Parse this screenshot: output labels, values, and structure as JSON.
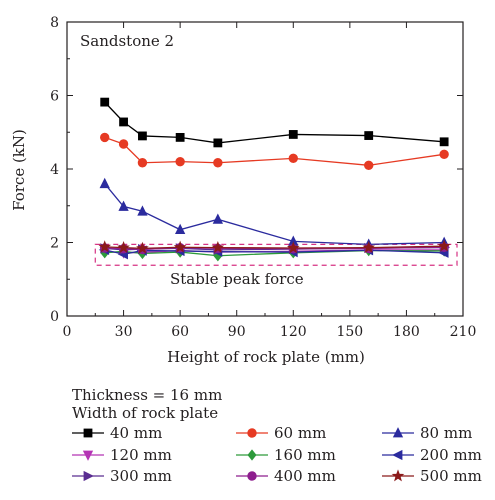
{
  "chart_data": {
    "type": "line",
    "panel_label": "Sandstone 2",
    "xlabel": "Height of rock plate (mm)",
    "ylabel": "Force (kN)",
    "xlim": [
      0,
      210
    ],
    "ylim": [
      0,
      8
    ],
    "xticks": [
      0,
      30,
      60,
      90,
      120,
      150,
      180,
      210
    ],
    "yticks": [
      0,
      2,
      4,
      6,
      8
    ],
    "grid": false,
    "annotation": "Stable peak force",
    "legend": {
      "position": "bottom",
      "header_lines": [
        "Thickness = 16 mm",
        "Width of rock plate"
      ]
    },
    "x": [
      20,
      30,
      40,
      60,
      80,
      120,
      160,
      200
    ],
    "series": [
      {
        "name": "40 mm",
        "color": "#000000",
        "marker": "square",
        "values": [
          5.82,
          5.28,
          4.9,
          4.86,
          4.71,
          4.94,
          4.91,
          4.74
        ]
      },
      {
        "name": "60 mm",
        "color": "#e63a23",
        "marker": "circle",
        "values": [
          4.86,
          4.68,
          4.17,
          4.2,
          4.17,
          4.29,
          4.1,
          4.4
        ]
      },
      {
        "name": "80 mm",
        "color": "#2b2b9e",
        "marker": "triangle-up",
        "values": [
          3.6,
          2.98,
          2.85,
          2.35,
          2.63,
          2.03,
          1.95,
          2.0
        ]
      },
      {
        "name": "120 mm",
        "color": "#b535b5",
        "marker": "triangle-down",
        "values": [
          1.76,
          1.72,
          1.73,
          1.78,
          1.74,
          1.76,
          1.8,
          1.8
        ]
      },
      {
        "name": "160 mm",
        "color": "#2d9a3b",
        "marker": "diamond",
        "values": [
          1.72,
          1.76,
          1.7,
          1.74,
          1.64,
          1.72,
          1.78,
          1.77
        ]
      },
      {
        "name": "200 mm",
        "color": "#2b2b9e",
        "marker": "triangle-left",
        "values": [
          1.8,
          1.68,
          1.78,
          1.77,
          1.75,
          1.74,
          1.79,
          1.72
        ]
      },
      {
        "name": "300 mm",
        "color": "#5a2d91",
        "marker": "triangle-right",
        "values": [
          1.84,
          1.8,
          1.82,
          1.84,
          1.8,
          1.82,
          1.85,
          1.86
        ]
      },
      {
        "name": "400 mm",
        "color": "#8e1e8e",
        "marker": "circle",
        "values": [
          1.85,
          1.83,
          1.81,
          1.86,
          1.84,
          1.83,
          1.84,
          1.87
        ]
      },
      {
        "name": "500 mm",
        "color": "#8b1a1a",
        "marker": "star",
        "values": [
          1.88,
          1.86,
          1.84,
          1.87,
          1.86,
          1.85,
          1.86,
          1.9
        ]
      }
    ]
  }
}
